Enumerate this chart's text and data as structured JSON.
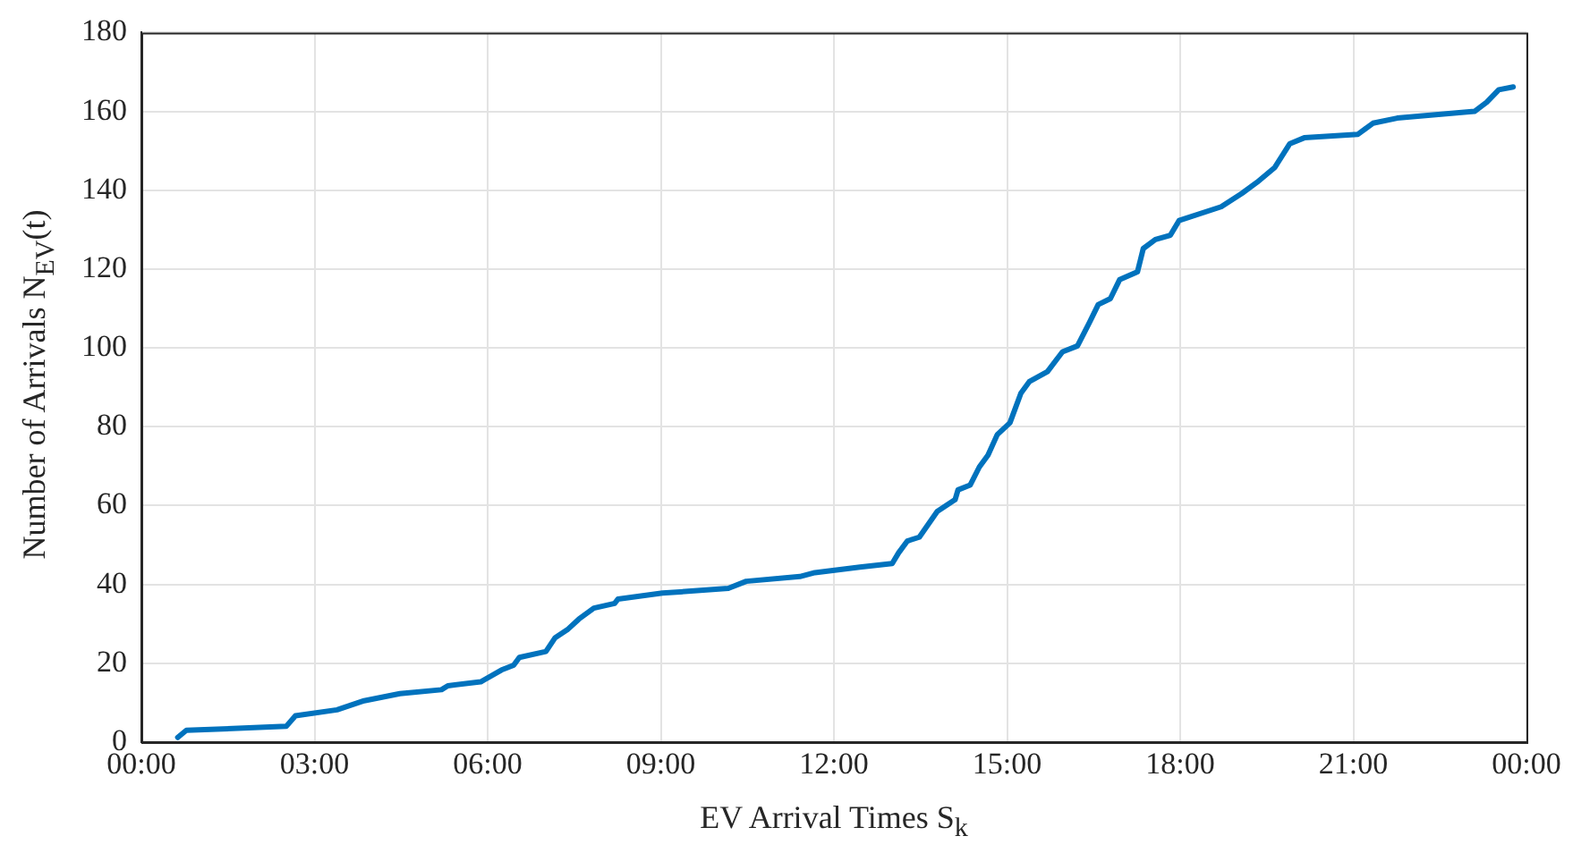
{
  "chart_data": {
    "type": "line",
    "xlabel": "EV Arrival Times S$_{k}$",
    "ylabel": "Number of Arrivals N$_{EV}$(t)",
    "x": [
      0.63,
      0.78,
      2.51,
      2.67,
      3.39,
      3.86,
      4.48,
      5.2,
      5.31,
      5.88,
      6.24,
      6.45,
      6.55,
      7.01,
      7.17,
      7.38,
      7.58,
      7.84,
      8.2,
      8.26,
      9.03,
      10.17,
      10.48,
      11.41,
      11.67,
      12.45,
      13.01,
      13.12,
      13.27,
      13.48,
      13.79,
      14.1,
      14.15,
      14.36,
      14.52,
      14.67,
      14.83,
      15.05,
      15.24,
      15.39,
      15.7,
      15.96,
      16.22,
      16.43,
      16.58,
      16.79,
      16.95,
      17.26,
      17.36,
      17.57,
      17.83,
      17.98,
      18.71,
      19.07,
      19.33,
      19.64,
      19.9,
      20.15,
      21.08,
      21.34,
      21.76,
      23.1,
      23.31,
      23.52,
      23.77
    ],
    "series": [
      {
        "color": "#0072bd",
        "values": [
          1.2,
          3,
          4,
          6.7,
          8.2,
          10.5,
          12.3,
          13.3,
          14.3,
          15.3,
          18.3,
          19.5,
          21.5,
          23,
          26.5,
          28.5,
          31.2,
          34,
          35.2,
          36.3,
          37.8,
          39,
          40.8,
          42,
          43,
          44.4,
          45.3,
          48,
          51,
          52,
          58.5,
          61.5,
          64,
          65.2,
          69.8,
          72.8,
          78,
          81,
          88.5,
          91.5,
          94,
          99,
          100.5,
          106.5,
          111,
          112.5,
          117.3,
          119.3,
          125.2,
          127.5,
          128.6,
          132.3,
          135.8,
          139.2,
          142,
          145.8,
          151.8,
          153.3,
          154.2,
          157,
          158.3,
          160,
          162.3,
          165.5,
          166.2
        ]
      }
    ],
    "xlim": [
      0,
      24
    ],
    "xticks": [
      {
        "value": 0,
        "label": "00:00"
      },
      {
        "value": 3,
        "label": "03:00"
      },
      {
        "value": 6,
        "label": "06:00"
      },
      {
        "value": 9,
        "label": "09:00"
      },
      {
        "value": 12,
        "label": "12:00"
      },
      {
        "value": 15,
        "label": "15:00"
      },
      {
        "value": 18,
        "label": "18:00"
      },
      {
        "value": 21,
        "label": "21:00"
      },
      {
        "value": 24,
        "label": "00:00"
      }
    ],
    "ylim": [
      0,
      180
    ],
    "yticks": [
      0,
      20,
      40,
      60,
      80,
      100,
      120,
      140,
      160,
      180
    ],
    "grid": true,
    "marker": "none",
    "line_style": "solid"
  }
}
